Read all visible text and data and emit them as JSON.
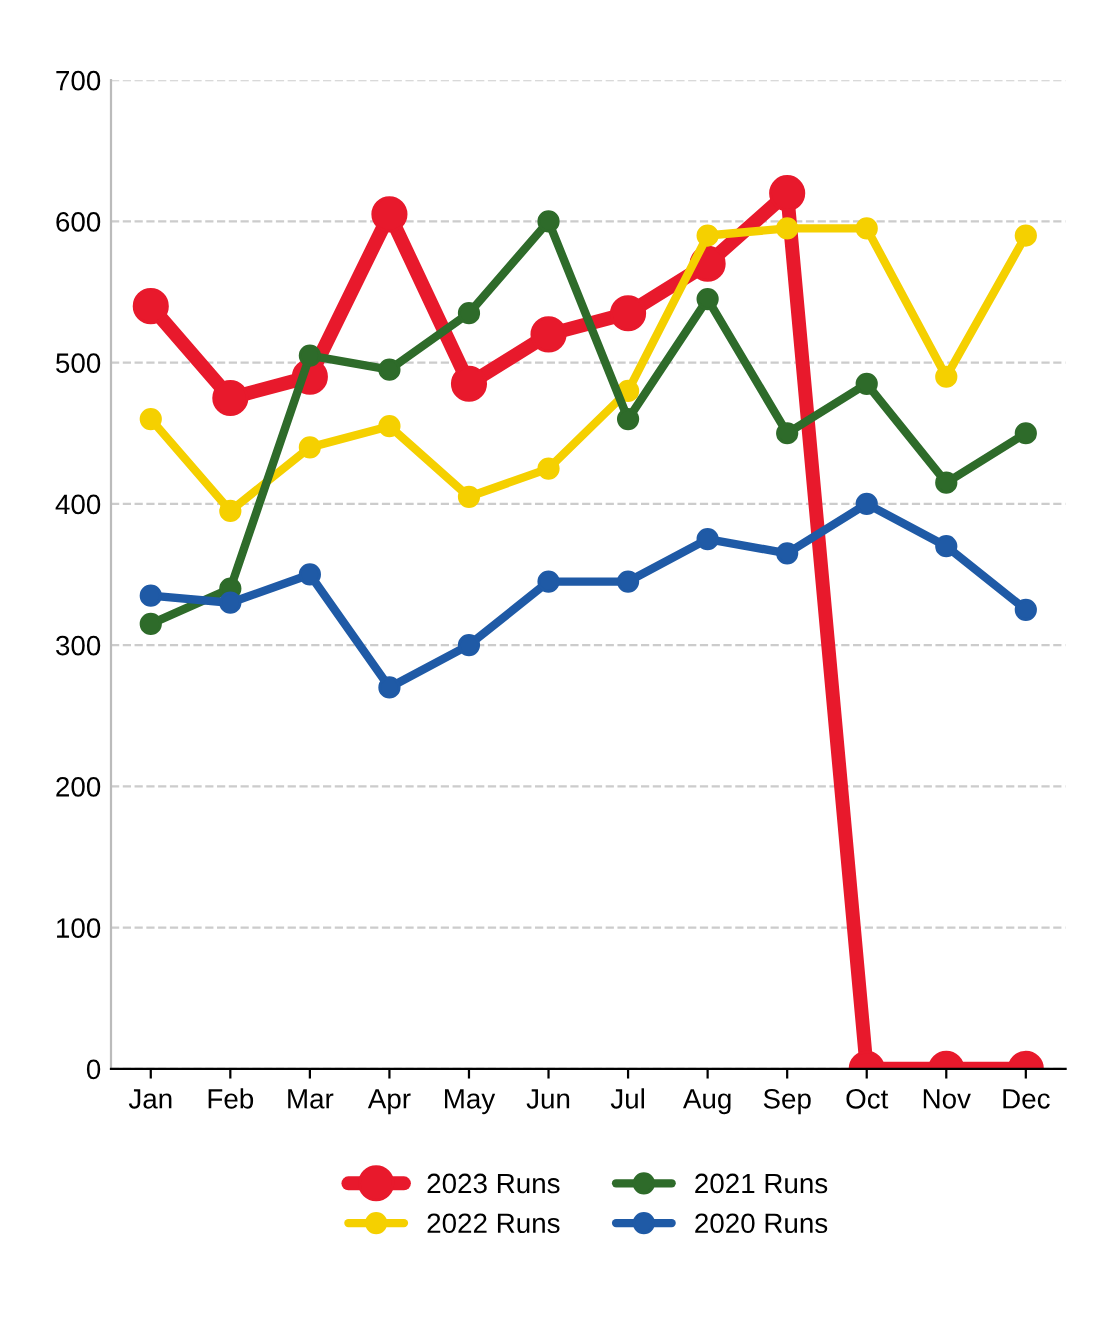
{
  "chart_data": {
    "type": "line",
    "categories": [
      "Jan",
      "Feb",
      "Mar",
      "Apr",
      "May",
      "Jun",
      "Jul",
      "Aug",
      "Sep",
      "Oct",
      "Nov",
      "Dec"
    ],
    "series": [
      {
        "name": "2023 Runs",
        "color": "#e8192c",
        "values": [
          540,
          475,
          490,
          605,
          485,
          520,
          535,
          570,
          620,
          0,
          0,
          0
        ]
      },
      {
        "name": "2022 Runs",
        "color": "#f5d000",
        "values": [
          460,
          395,
          440,
          455,
          405,
          425,
          480,
          590,
          595,
          595,
          490,
          590
        ]
      },
      {
        "name": "2021 Runs",
        "color": "#2e6b2a",
        "values": [
          315,
          340,
          505,
          495,
          535,
          600,
          460,
          545,
          450,
          485,
          415,
          450
        ]
      },
      {
        "name": "2020 Runs",
        "color": "#1f5aa6",
        "values": [
          335,
          330,
          350,
          270,
          300,
          345,
          345,
          375,
          365,
          400,
          370,
          325
        ]
      }
    ],
    "ylim": [
      0,
      700
    ],
    "yticks": [
      0,
      100,
      200,
      300,
      400,
      500,
      600,
      700
    ],
    "grid": "y",
    "legend": "bottom",
    "marker": "circle",
    "line_style": "solid"
  }
}
